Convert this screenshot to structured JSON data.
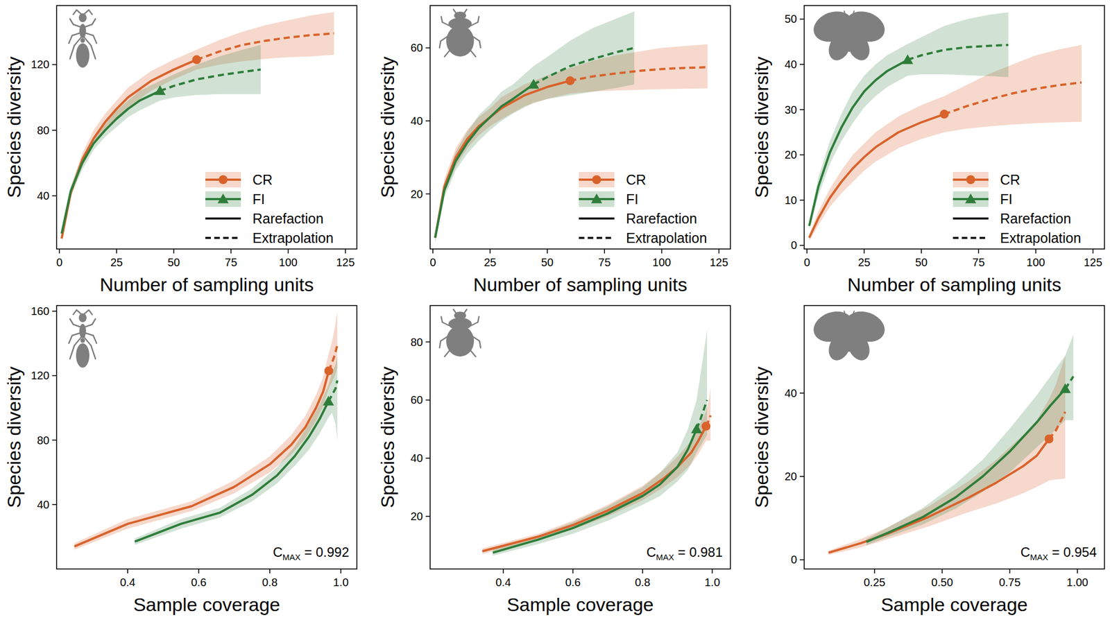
{
  "chart_data": [
    {
      "type": "line",
      "x_label": "Number of sampling units",
      "y_label": "Species diversity",
      "xlim": [
        -1.2,
        130
      ],
      "ylim": [
        7.6,
        156
      ],
      "xticks": [
        0,
        25,
        50,
        75,
        100,
        125
      ],
      "yticks": [
        40,
        80,
        120
      ],
      "legend": "bottom-right",
      "legend_styles": [
        {
          "label": "Rarefaction",
          "line_style": "solid"
        },
        {
          "label": "Extrapolation",
          "line_style": "dashed"
        }
      ],
      "series": [
        {
          "name": "CR",
          "color": "#d9622b",
          "marker": "circle",
          "observed_x": 60,
          "x": [
            1,
            5,
            10,
            15,
            20,
            25,
            30,
            40,
            50,
            60,
            70,
            80,
            90,
            100,
            110,
            120
          ],
          "values": [
            14,
            42,
            62,
            75,
            85,
            93,
            100,
            110,
            117,
            123,
            128,
            132,
            134.5,
            136.5,
            138,
            139
          ],
          "lower": [
            12,
            39,
            58,
            71,
            80,
            88,
            94,
            104,
            111,
            117,
            120,
            122,
            123.5,
            124.5,
            125,
            126
          ],
          "upper": [
            16,
            45,
            66,
            80,
            90,
            98,
            106,
            116,
            123,
            129,
            135,
            140,
            144,
            147,
            150,
            152
          ]
        },
        {
          "name": "FI",
          "color": "#2e7d3a",
          "marker": "triangle",
          "observed_x": 44,
          "x": [
            1,
            5,
            10,
            15,
            20,
            25,
            30,
            35,
            44,
            50,
            60,
            70,
            80,
            88
          ],
          "values": [
            17,
            43,
            60,
            72,
            80,
            87,
            93,
            98,
            104,
            107,
            111,
            113.5,
            115.5,
            117
          ],
          "lower": [
            15,
            40,
            56,
            68,
            76,
            82,
            88,
            92,
            98,
            100,
            101.5,
            102,
            102,
            102
          ],
          "upper": [
            19,
            46,
            64,
            76,
            84,
            92,
            98,
            104,
            110,
            114,
            120,
            125,
            129,
            132
          ]
        }
      ]
    },
    {
      "type": "line",
      "x_label": "Number of sampling units",
      "y_label": "Species diversity",
      "xlim": [
        -1.2,
        130
      ],
      "ylim": [
        4.9,
        71.6
      ],
      "xticks": [
        0,
        25,
        50,
        75,
        100,
        125
      ],
      "yticks": [
        20,
        40,
        60
      ],
      "legend": "bottom-right",
      "legend_styles": [
        {
          "label": "Rarefaction",
          "line_style": "solid"
        },
        {
          "label": "Extrapolation",
          "line_style": "dashed"
        }
      ],
      "series": [
        {
          "name": "CR",
          "color": "#d9622b",
          "marker": "circle",
          "observed_x": 60,
          "x": [
            1,
            5,
            10,
            15,
            20,
            25,
            30,
            40,
            50,
            60,
            70,
            80,
            90,
            100,
            110,
            120
          ],
          "values": [
            8,
            22,
            30,
            35,
            38.5,
            41,
            43.5,
            47,
            49.3,
            51,
            52.2,
            53,
            53.7,
            54.2,
            54.5,
            54.7
          ],
          "lower": [
            7,
            20,
            27.5,
            32.5,
            36,
            38.5,
            40.5,
            44,
            46,
            47.5,
            48,
            48.3,
            48.5,
            48.7,
            48.8,
            48.9
          ],
          "upper": [
            9,
            24,
            32.5,
            37.5,
            41,
            43.5,
            46.5,
            50,
            52.5,
            54.5,
            56.5,
            58,
            59,
            60,
            60.5,
            61
          ]
        },
        {
          "name": "FI",
          "color": "#2e7d3a",
          "marker": "triangle",
          "observed_x": 44,
          "x": [
            1,
            5,
            10,
            15,
            20,
            25,
            30,
            35,
            44,
            50,
            60,
            70,
            80,
            88
          ],
          "values": [
            8,
            21,
            29,
            34,
            38,
            41,
            44,
            46,
            50,
            52,
            55,
            57,
            58.8,
            60
          ],
          "lower": [
            7,
            19,
            26.5,
            31,
            34.5,
            37.5,
            40,
            42,
            45,
            46,
            47,
            48,
            49,
            50
          ],
          "upper": [
            9,
            23,
            31.5,
            37,
            41.5,
            44.5,
            48,
            50,
            55,
            57.5,
            62,
            65.5,
            68,
            70
          ]
        }
      ]
    },
    {
      "type": "line",
      "x_label": "Number of sampling units",
      "y_label": "Species diversity",
      "xlim": [
        -1.2,
        130
      ],
      "ylim": [
        -0.8,
        53
      ],
      "xticks": [
        0,
        25,
        50,
        75,
        100,
        125
      ],
      "yticks": [
        0,
        10,
        20,
        30,
        40,
        50
      ],
      "legend": "bottom-right",
      "legend_styles": [
        {
          "label": "Rarefaction",
          "line_style": "solid"
        },
        {
          "label": "Extrapolation",
          "line_style": "dashed"
        }
      ],
      "series": [
        {
          "name": "CR",
          "color": "#d9622b",
          "marker": "circle",
          "observed_x": 60,
          "x": [
            1,
            5,
            10,
            15,
            20,
            25,
            30,
            40,
            50,
            60,
            70,
            80,
            90,
            100,
            110,
            120
          ],
          "values": [
            1.7,
            6,
            10.5,
            14,
            17,
            19.5,
            21.7,
            25,
            27.2,
            29,
            30.8,
            32.3,
            33.6,
            34.6,
            35.4,
            36
          ],
          "lower": [
            1,
            4.5,
            8.5,
            11.5,
            14,
            16.5,
            18.5,
            21.5,
            23.5,
            25,
            25.8,
            26.3,
            26.7,
            27,
            27.2,
            27.3
          ],
          "upper": [
            2.4,
            7.5,
            12.5,
            16.5,
            20,
            22.5,
            25,
            28.5,
            31,
            33,
            35.5,
            38,
            40,
            42,
            43.3,
            44.3
          ]
        },
        {
          "name": "FI",
          "color": "#2e7d3a",
          "marker": "triangle",
          "observed_x": 44,
          "x": [
            1,
            5,
            10,
            15,
            20,
            25,
            30,
            35,
            44,
            50,
            60,
            70,
            80,
            88
          ],
          "values": [
            4.3,
            13,
            20.5,
            26,
            30.5,
            34,
            36.5,
            38.5,
            41,
            42,
            43.2,
            43.8,
            44.1,
            44.3
          ],
          "lower": [
            3.5,
            11,
            18,
            23,
            27,
            30.5,
            33,
            35,
            37.5,
            37.8,
            37.8,
            37.6,
            37.4,
            37.2
          ],
          "upper": [
            5,
            15,
            23,
            29,
            34,
            37.5,
            40,
            42,
            44.5,
            46,
            48.5,
            50,
            51,
            51.5
          ]
        }
      ]
    },
    {
      "type": "line",
      "x_label": "Sample coverage",
      "y_label": "Species diversity",
      "xlim": [
        0.2,
        1.045
      ],
      "ylim": [
        0,
        163.5
      ],
      "xticks": [
        0.4,
        0.6,
        0.8,
        {
          "value": 1,
          "label": "1.0"
        }
      ],
      "yticks": [
        40,
        80,
        120,
        160
      ],
      "annotation": {
        "prefix": "C",
        "subscript": "MAX",
        "suffix": " = ",
        "value": 0.992
      },
      "series": [
        {
          "name": "CR",
          "color": "#d9622b",
          "marker": "circle",
          "observed_x": 0.966,
          "x": [
            0.25,
            0.4,
            0.58,
            0.7,
            0.8,
            0.86,
            0.9,
            0.93,
            0.95,
            0.966,
            0.975,
            0.983,
            0.99
          ],
          "values": [
            14,
            28,
            39,
            51,
            65,
            77,
            88,
            100,
            110,
            123,
            128,
            133,
            139
          ],
          "lower": [
            12,
            25,
            36,
            47,
            60,
            71,
            81,
            92,
            101,
            112,
            116,
            120,
            125
          ],
          "upper": [
            16,
            31,
            42,
            55,
            70,
            83,
            95,
            108,
            119,
            134,
            141,
            150,
            160
          ]
        },
        {
          "name": "FI",
          "color": "#2e7d3a",
          "marker": "triangle",
          "observed_x": 0.965,
          "x": [
            0.42,
            0.55,
            0.66,
            0.75,
            0.82,
            0.87,
            0.91,
            0.94,
            0.965,
            0.975,
            0.985,
            0.99
          ],
          "values": [
            17,
            28,
            35,
            46,
            58,
            70,
            82,
            93,
            104,
            108,
            112,
            117
          ],
          "lower": [
            15,
            25,
            32,
            42,
            53,
            64,
            74,
            84,
            94,
            97,
            90,
            80
          ],
          "upper": [
            19,
            31,
            38,
            50,
            63,
            76,
            90,
            102,
            114,
            122,
            127,
            132
          ]
        }
      ]
    },
    {
      "type": "line",
      "x_label": "Sample coverage",
      "y_label": "Species diversity",
      "xlim": [
        0.19,
        1.052
      ],
      "ylim": [
        1.9,
        92.5
      ],
      "xticks": [
        0.4,
        0.6,
        0.8,
        {
          "value": 1,
          "label": "1.0"
        }
      ],
      "yticks": [
        20,
        40,
        60,
        80
      ],
      "annotation": {
        "prefix": "C",
        "subscript": "MAX",
        "suffix": " = ",
        "value": 0.981
      },
      "series": [
        {
          "name": "CR",
          "color": "#d9622b",
          "marker": "circle",
          "observed_x": 0.982,
          "x": [
            0.34,
            0.5,
            0.6,
            0.7,
            0.8,
            0.86,
            0.9,
            0.94,
            0.96,
            0.982,
            0.99,
            0.995
          ],
          "values": [
            8,
            13,
            17,
            22,
            28,
            33,
            37,
            42,
            46,
            51,
            53,
            54.7
          ],
          "lower": [
            7,
            12,
            15.5,
            20,
            25.5,
            30,
            33.5,
            38,
            41.5,
            46,
            46,
            46
          ],
          "upper": [
            9,
            14,
            18.5,
            24,
            30.5,
            36,
            40.5,
            46,
            50.5,
            56,
            60,
            64
          ]
        },
        {
          "name": "FI",
          "color": "#2e7d3a",
          "marker": "triangle",
          "observed_x": 0.955,
          "x": [
            0.37,
            0.5,
            0.6,
            0.7,
            0.8,
            0.85,
            0.9,
            0.93,
            0.955,
            0.965,
            0.975,
            0.985
          ],
          "values": [
            7.5,
            12,
            16,
            21,
            27,
            31,
            37,
            43,
            50,
            53,
            56.5,
            60
          ],
          "lower": [
            6.5,
            10.5,
            14,
            18.5,
            24,
            27,
            32,
            36,
            42,
            44,
            46,
            48
          ],
          "upper": [
            8.5,
            13.5,
            18,
            23.5,
            30,
            35,
            42,
            50,
            60,
            68,
            76,
            84
          ]
        }
      ]
    },
    {
      "type": "line",
      "x_label": "Sample coverage",
      "y_label": "Species diversity",
      "xlim": [
        -0.01,
        1.1
      ],
      "ylim": [
        -2.2,
        61
      ],
      "xticks": [
        0.25,
        {
          "value": 0.5,
          "label": "0.50"
        },
        0.75,
        {
          "value": 1,
          "label": "1.00"
        }
      ],
      "yticks": [
        0,
        20,
        40
      ],
      "annotation": {
        "prefix": "C",
        "subscript": "MAX",
        "suffix": " = ",
        "value": 0.954
      },
      "series": [
        {
          "name": "CR",
          "color": "#d9622b",
          "marker": "circle",
          "observed_x": 0.895,
          "x": [
            0.08,
            0.2,
            0.3,
            0.45,
            0.6,
            0.7,
            0.8,
            0.85,
            0.895,
            0.92,
            0.94,
            0.955
          ],
          "values": [
            1.7,
            4,
            6.3,
            10.3,
            15,
            18.5,
            22.5,
            25,
            29,
            31,
            33.5,
            35.5
          ],
          "lower": [
            1.2,
            3,
            5,
            8,
            11.5,
            13.5,
            16,
            17.5,
            19,
            19.3,
            19.4,
            19.5
          ],
          "upper": [
            2.2,
            5,
            7.8,
            12.8,
            19,
            24,
            30,
            33.5,
            38.5,
            42,
            46,
            49
          ]
        },
        {
          "name": "FI",
          "color": "#2e7d3a",
          "marker": "triangle",
          "observed_x": 0.955,
          "x": [
            0.22,
            0.3,
            0.43,
            0.55,
            0.65,
            0.75,
            0.85,
            0.9,
            0.955,
            0.97,
            0.985
          ],
          "values": [
            4.3,
            6.5,
            10.3,
            15,
            20,
            26,
            33,
            37,
            41,
            42.5,
            44
          ],
          "lower": [
            3.5,
            5.5,
            8.5,
            12.3,
            16.3,
            21,
            27,
            30,
            33.5,
            33.5,
            33.5
          ],
          "upper": [
            5,
            7.8,
            12.5,
            18.3,
            24,
            31.5,
            39.5,
            44,
            49,
            51.5,
            54
          ]
        }
      ]
    }
  ]
}
